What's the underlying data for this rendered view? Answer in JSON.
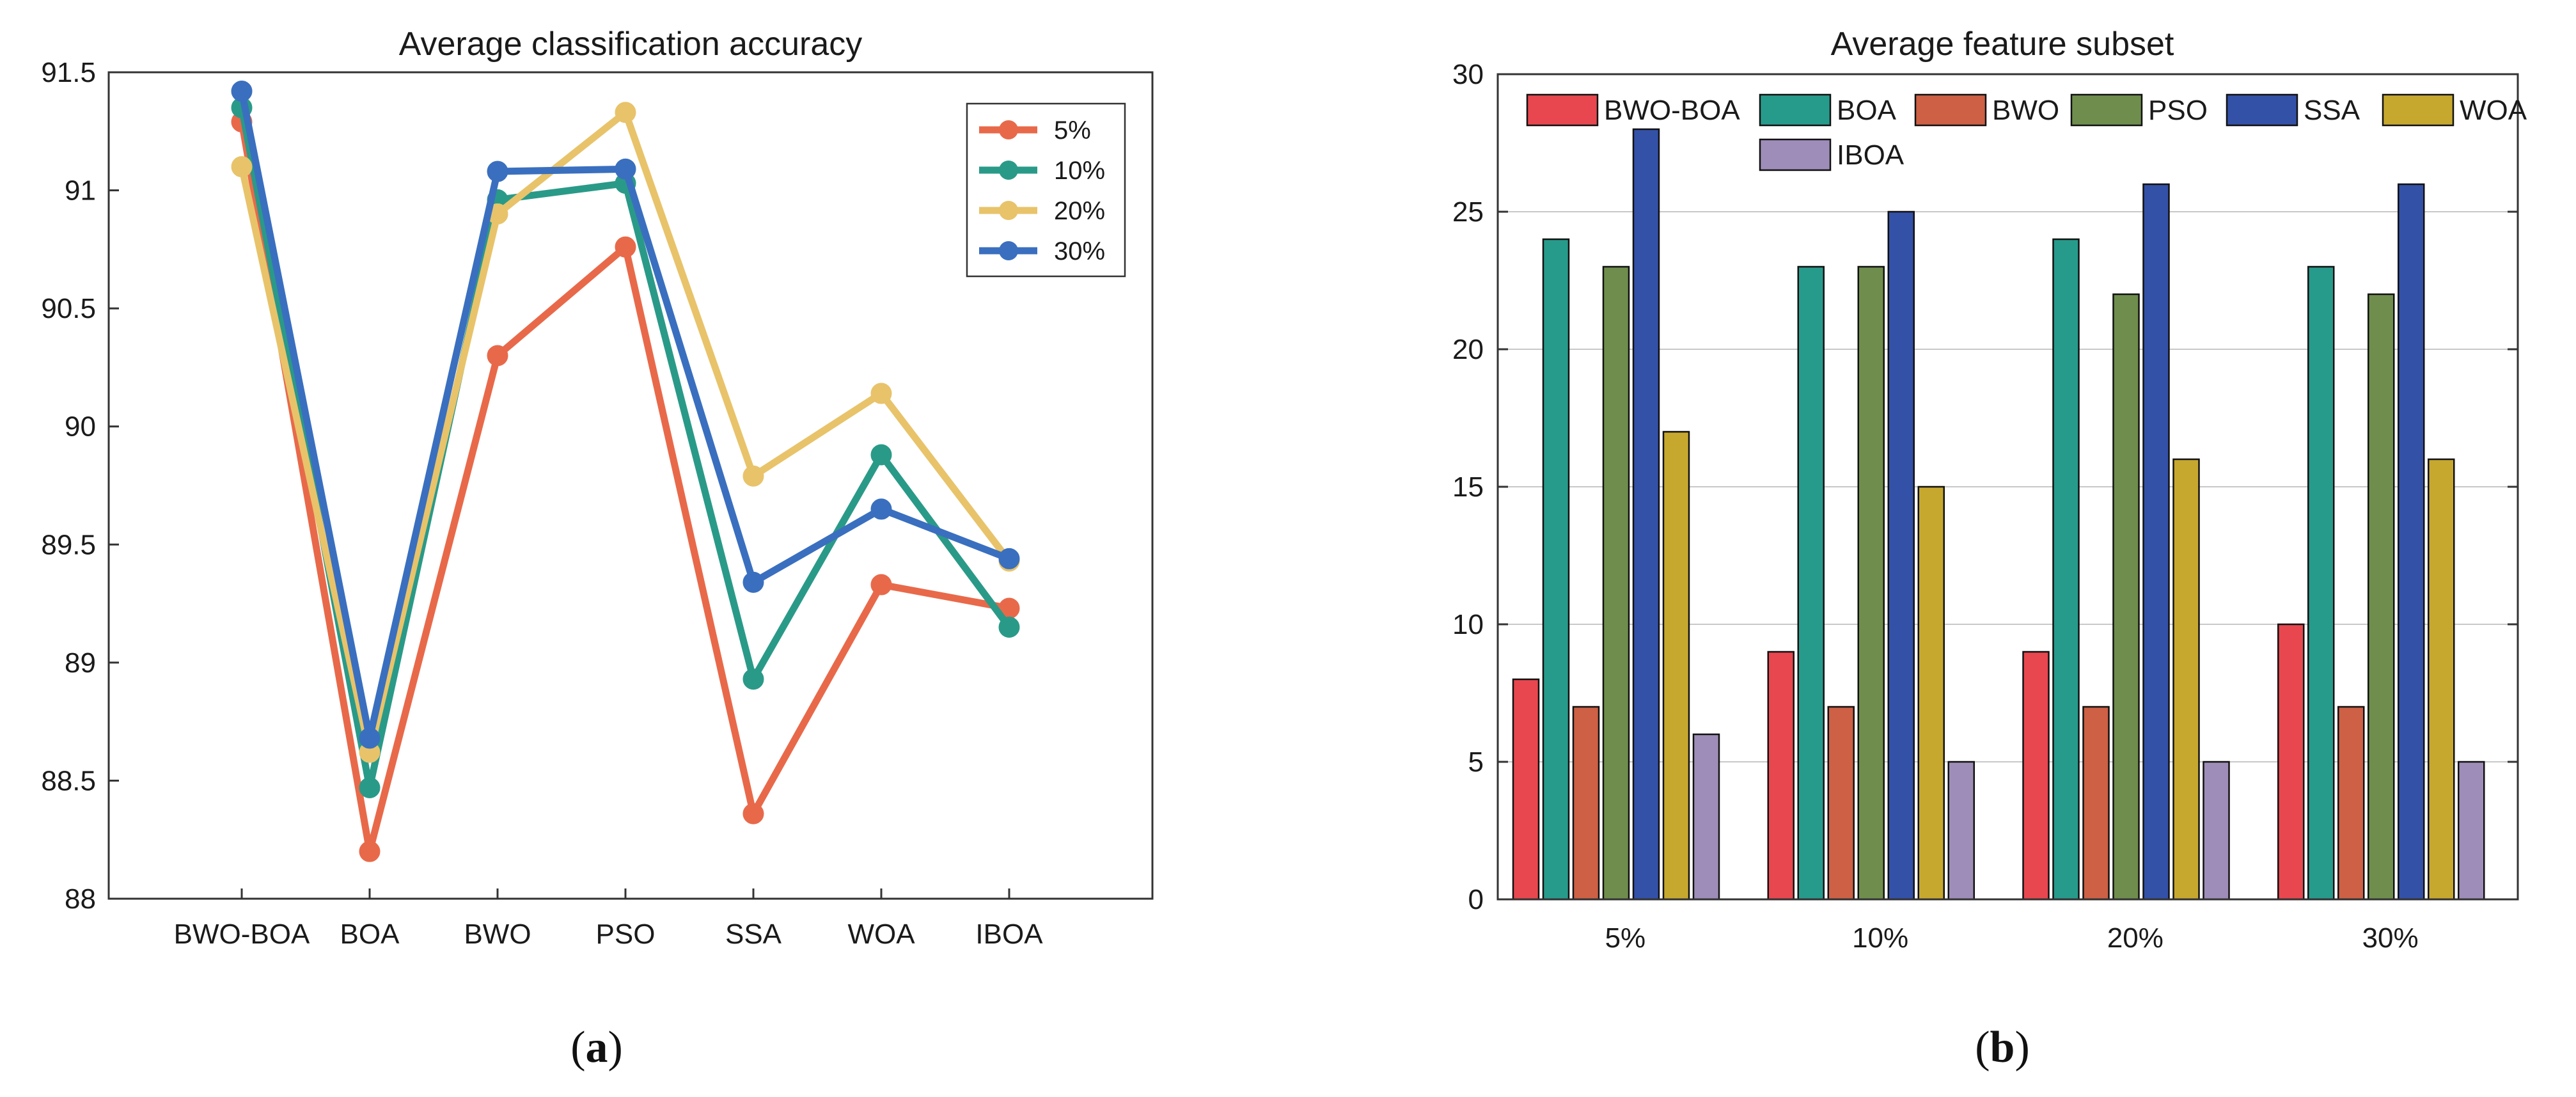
{
  "chart_data": [
    {
      "type": "line",
      "title": "Average classification accuracy",
      "categories": [
        "BWO-BOA",
        "BOA",
        "BWO",
        "PSO",
        "SSA",
        "WOA",
        "IBOA"
      ],
      "ylim": [
        88,
        91.5
      ],
      "yticks": [
        88,
        88.5,
        89,
        89.5,
        90,
        90.5,
        91,
        91.5
      ],
      "ytick_labels": [
        "88",
        "88.5",
        "89",
        "89.5",
        "90",
        "90.5",
        "91",
        "91.5"
      ],
      "grid": false,
      "legend_position": "top-right",
      "series": [
        {
          "name": "5%",
          "color": "#E8694A",
          "values": [
            91.29,
            88.2,
            90.3,
            90.76,
            88.36,
            89.33,
            89.23
          ]
        },
        {
          "name": "10%",
          "color": "#2A9A88",
          "values": [
            91.35,
            88.47,
            90.96,
            91.03,
            88.93,
            89.88,
            89.15
          ]
        },
        {
          "name": "20%",
          "color": "#E8C36A",
          "values": [
            91.1,
            88.62,
            90.9,
            91.33,
            89.79,
            90.14,
            89.43
          ]
        },
        {
          "name": "30%",
          "color": "#3A6FBF",
          "values": [
            91.42,
            88.68,
            91.08,
            91.09,
            89.34,
            89.65,
            89.44
          ]
        }
      ],
      "caption": {
        "open": "(",
        "letter": "a",
        "close": ")"
      }
    },
    {
      "type": "bar",
      "title": "Average feature subset",
      "categories": [
        "5%",
        "10%",
        "20%",
        "30%"
      ],
      "ylim": [
        0,
        30
      ],
      "yticks": [
        0,
        5,
        10,
        15,
        20,
        25,
        30
      ],
      "ytick_labels": [
        "0",
        "5",
        "10",
        "15",
        "20",
        "25",
        "30"
      ],
      "grid": true,
      "legend_position": "top",
      "series": [
        {
          "name": "BWO-BOA",
          "color": "#E8474F",
          "values": [
            8,
            9,
            9,
            10
          ]
        },
        {
          "name": "BOA",
          "color": "#279B8B",
          "values": [
            24,
            23,
            24,
            23
          ]
        },
        {
          "name": "BWO",
          "color": "#CD6045",
          "values": [
            7,
            7,
            7,
            7
          ]
        },
        {
          "name": "PSO",
          "color": "#6F8E4D",
          "values": [
            23,
            23,
            22,
            22
          ]
        },
        {
          "name": "SSA",
          "color": "#3451A8",
          "values": [
            28,
            25,
            26,
            26
          ]
        },
        {
          "name": "WOA",
          "color": "#C7A82E",
          "values": [
            17,
            15,
            16,
            16
          ]
        },
        {
          "name": "IBOA",
          "color": "#9E8DB8",
          "values": [
            6,
            5,
            5,
            5
          ]
        }
      ],
      "caption": {
        "open": "(",
        "letter": "b",
        "close": ")"
      }
    }
  ]
}
